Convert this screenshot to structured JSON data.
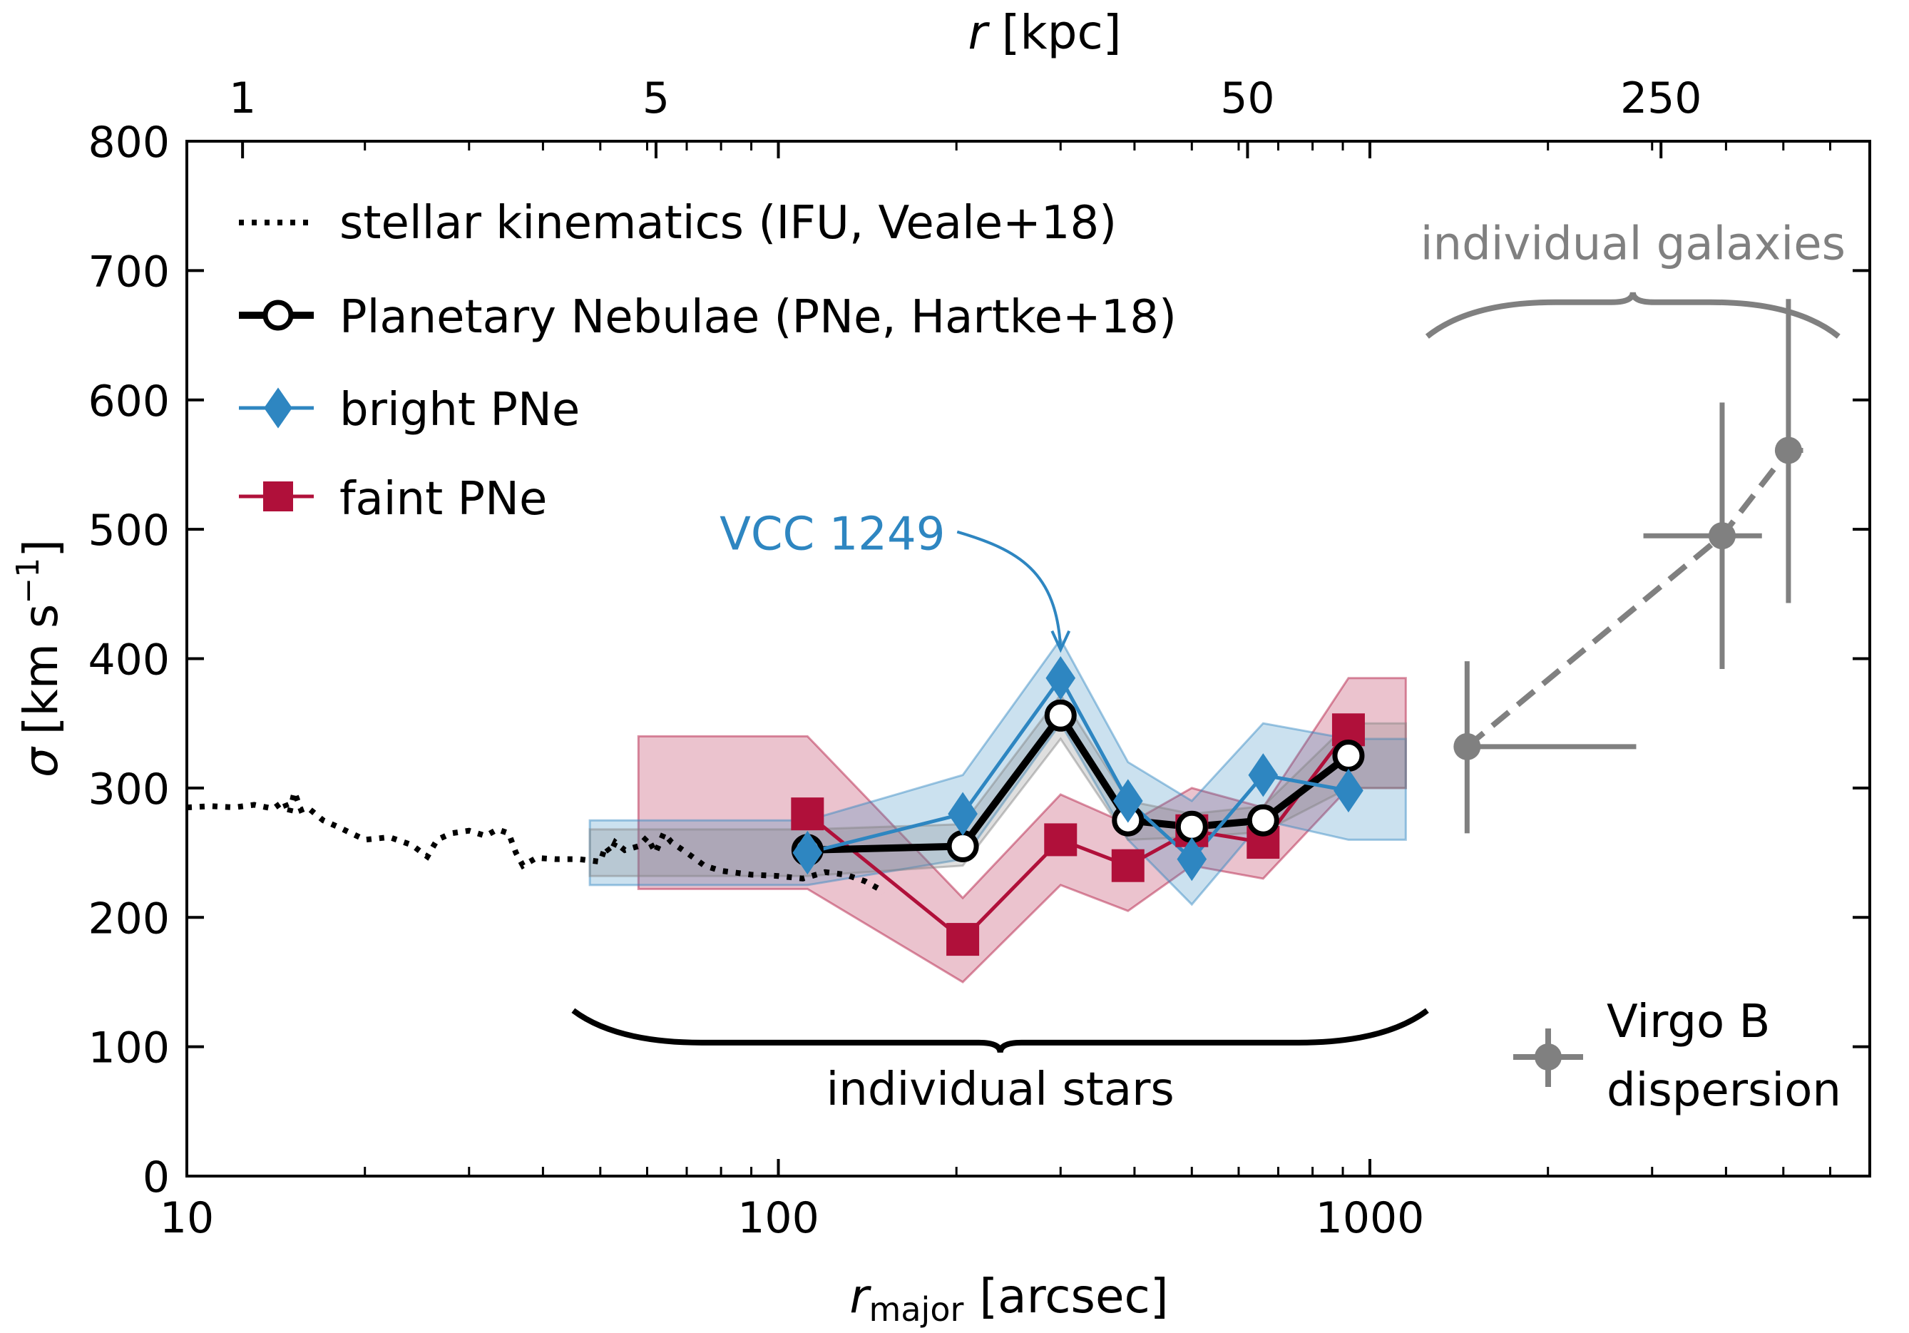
{
  "chart_data": {
    "type": "line",
    "xscale": "log",
    "xlim": [
      10,
      7000
    ],
    "ylim": [
      0,
      800
    ],
    "xlabel": {
      "main": "r",
      "sub": "major",
      "unit": "[arcsec]"
    },
    "ylabel": {
      "main": "σ",
      "unit": "[km s",
      "sup": "−1",
      "close": "]"
    },
    "top_axis": {
      "label": {
        "main": "r",
        "unit": "[kpc]"
      },
      "kpc_per_arcsec": 0.0805,
      "ticks": [
        {
          "value": 1,
          "label": "1"
        },
        {
          "value": 5,
          "label": "5"
        },
        {
          "value": 50,
          "label": "50"
        },
        {
          "value": 250,
          "label": "250"
        }
      ]
    },
    "x_ticks": [
      {
        "value": 10,
        "label": "10"
      },
      {
        "value": 100,
        "label": "100"
      },
      {
        "value": 1000,
        "label": "1000"
      }
    ],
    "y_ticks": [
      0,
      100,
      200,
      300,
      400,
      500,
      600,
      700,
      800
    ],
    "colors": {
      "black": "#000000",
      "blue": "#2e86c1",
      "red": "#b0103a",
      "gray": "#808080"
    },
    "legend": [
      {
        "key": "stellar",
        "label": "stellar kinematics (IFU, Veale+18)"
      },
      {
        "key": "pne",
        "label": "Planetary Nebulae (PNe, Hartke+18)"
      },
      {
        "key": "bright",
        "label": "bright PNe"
      },
      {
        "key": "faint",
        "label": "faint PNe"
      }
    ],
    "series": {
      "stellar": {
        "name": "stellar kinematics (IFU, Veale+18)",
        "x": [
          10,
          11,
          12,
          13,
          14,
          14.6,
          14.9,
          15.2,
          15.6,
          16,
          17,
          18,
          20,
          22,
          24,
          25.5,
          26.5,
          28,
          30,
          32,
          33.5,
          35,
          36,
          37,
          39,
          42,
          46,
          50,
          51,
          52,
          53,
          55,
          58,
          60,
          62,
          64,
          66,
          70,
          75,
          80,
          90,
          100,
          110,
          120,
          130,
          140,
          148,
          150
        ],
        "y": [
          285,
          286,
          285,
          287,
          284,
          290,
          280,
          297,
          283,
          285,
          275,
          270,
          260,
          262,
          256,
          247,
          260,
          265,
          267,
          263,
          268,
          265,
          250,
          240,
          246,
          245,
          245,
          243,
          255,
          250,
          258,
          252,
          255,
          262,
          250,
          265,
          258,
          250,
          240,
          236,
          233,
          232,
          230,
          235,
          233,
          228,
          222,
          218
        ]
      },
      "pne": {
        "name": "Planetary Nebulae (PNe, Hartke+18)",
        "x": [
          112,
          205,
          300,
          390,
          500,
          660,
          920
        ],
        "y": [
          252,
          255,
          356,
          275,
          270,
          275,
          325
        ],
        "band_x": [
          48,
          112,
          205,
          300,
          390,
          500,
          660,
          920,
          1150
        ],
        "band_lower": [
          232,
          232,
          240,
          338,
          260,
          262,
          266,
          300,
          300
        ],
        "band_upper": [
          268,
          268,
          272,
          372,
          290,
          280,
          286,
          350,
          350
        ]
      },
      "bright": {
        "name": "bright PNe",
        "x": [
          112,
          205,
          300,
          390,
          500,
          660,
          920
        ],
        "y": [
          250,
          280,
          385,
          290,
          245,
          310,
          298
        ],
        "band_x": [
          48,
          112,
          205,
          300,
          390,
          500,
          660,
          920,
          1150
        ],
        "band_lower": [
          225,
          225,
          245,
          350,
          260,
          210,
          275,
          260,
          260
        ],
        "band_upper": [
          275,
          275,
          310,
          415,
          320,
          290,
          350,
          338,
          338
        ]
      },
      "faint": {
        "name": "faint PNe",
        "x": [
          112,
          205,
          300,
          390,
          500,
          660,
          920
        ],
        "y": [
          280,
          183,
          260,
          240,
          267,
          258,
          345
        ],
        "band_x": [
          58,
          112,
          205,
          300,
          390,
          500,
          660,
          920,
          1150
        ],
        "band_lower": [
          222,
          222,
          150,
          225,
          205,
          240,
          230,
          300,
          300
        ],
        "band_upper": [
          340,
          340,
          215,
          295,
          272,
          300,
          285,
          385,
          385
        ]
      },
      "virgo": {
        "name": "Virgo B dispersion",
        "points": [
          {
            "x": 1460,
            "y": 332,
            "xerr": [
              1440,
              2820
            ],
            "yerr": [
              265,
              398
            ]
          },
          {
            "x": 3940,
            "y": 495,
            "xerr": [
              2900,
              4600
            ],
            "yerr": [
              392,
              598
            ]
          },
          {
            "x": 5100,
            "y": 561,
            "xerr": [
              4950,
              5400
            ],
            "yerr": [
              443,
              678
            ]
          }
        ]
      }
    },
    "annotations": {
      "vcc": {
        "text": "VCC 1249",
        "x": 300,
        "y": 385
      },
      "individual_stars": {
        "text": "individual stars",
        "x0": 45,
        "x1": 1250,
        "y": 128
      },
      "individual_galaxies": {
        "text": "individual galaxies",
        "x0": 1250,
        "x1": 6200,
        "y": 702
      },
      "virgo_legend": {
        "line1": "Virgo B",
        "line2": "dispersion"
      }
    }
  }
}
